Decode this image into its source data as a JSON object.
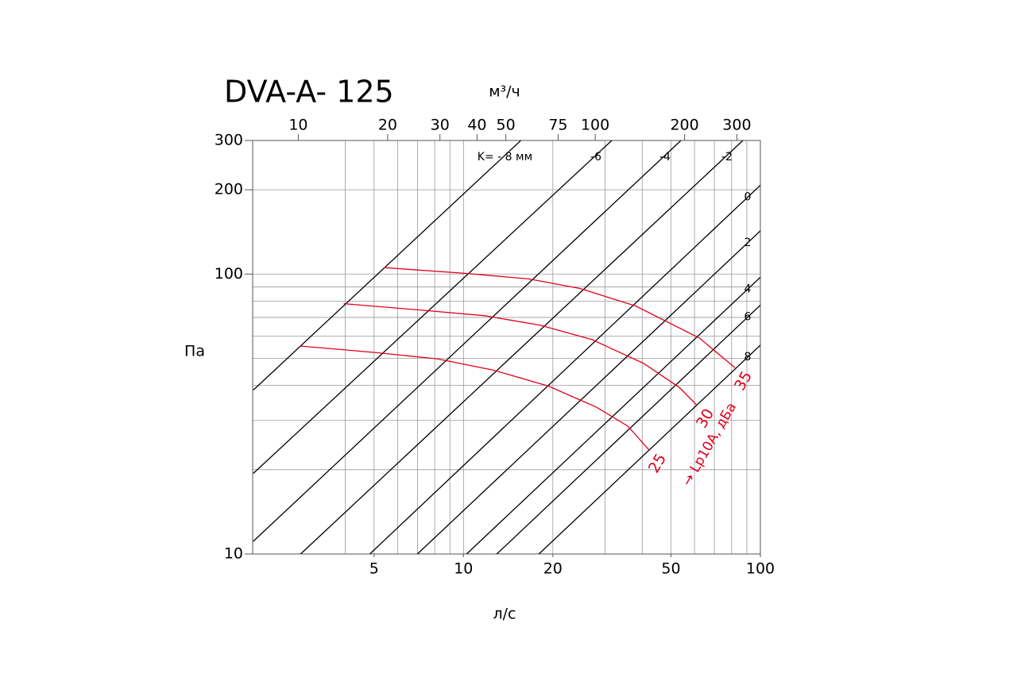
{
  "chart_data": {
    "type": "line",
    "title": "DVA-A- 125",
    "x_label": "л/с",
    "y_label": "Па",
    "x2_label": "м³/ч",
    "log_x": true,
    "log_y": true,
    "xlim": [
      1.95,
      100
    ],
    "ylim": [
      10,
      300
    ],
    "xticks": [
      5,
      10,
      20,
      50,
      100
    ],
    "yticks": [
      10,
      100,
      200,
      300
    ],
    "x2lim": [
      7.02,
      360
    ],
    "x2ticks": [
      10,
      20,
      30,
      40,
      50,
      75,
      100,
      200,
      300
    ],
    "xgrid": [
      4,
      5,
      6,
      7,
      8,
      9,
      10,
      20,
      30,
      40,
      50,
      60,
      70,
      80,
      90
    ],
    "ygrid": [
      20,
      30,
      40,
      50,
      60,
      70,
      80,
      90,
      100,
      200
    ],
    "grid": true,
    "series": [
      {
        "name": "K= - 8 мм",
        "color": "#000000",
        "x": [
          1.96,
          15.6
        ],
        "values": [
          38.5,
          300
        ]
      },
      {
        "name": "-6",
        "color": "#000000",
        "x": [
          1.96,
          31.6
        ],
        "values": [
          19.4,
          300
        ]
      },
      {
        "name": "-4",
        "color": "#000000",
        "x": [
          1.96,
          54.0
        ],
        "values": [
          11.1,
          300
        ]
      },
      {
        "name": "-2",
        "color": "#000000",
        "x": [
          2.83,
          87.3
        ],
        "values": [
          10,
          300
        ]
      },
      {
        "name": "0",
        "color": "#000000",
        "x": [
          4.84,
          100
        ],
        "values": [
          10,
          207.6
        ]
      },
      {
        "name": "2",
        "color": "#000000",
        "x": [
          7.0,
          100
        ],
        "values": [
          10,
          142.6
        ]
      },
      {
        "name": "4",
        "color": "#000000",
        "x": [
          10.25,
          100
        ],
        "values": [
          10,
          97.4
        ]
      },
      {
        "name": "6",
        "color": "#000000",
        "x": [
          12.95,
          100
        ],
        "values": [
          10,
          77.4
        ]
      },
      {
        "name": "8",
        "color": "#000000",
        "x": [
          17.95,
          100
        ],
        "values": [
          10,
          55.7
        ]
      },
      {
        "name": "35",
        "color": "#e0001b",
        "x": [
          5.4,
          10.12,
          16.57,
          24.7,
          38.0,
          62.3,
          82.1
        ],
        "values": [
          105.4,
          100.6,
          96.1,
          88.8,
          76.9,
          59.1,
          46.3
        ]
      },
      {
        "name": "30",
        "color": "#e0001b",
        "x": [
          3.95,
          7.67,
          11.8,
          18.2,
          27.1,
          40.5,
          53.4,
          61.1
        ],
        "values": [
          78.4,
          73.9,
          71.0,
          65.6,
          58.3,
          47.9,
          39.3,
          34.0
        ]
      },
      {
        "name": "25",
        "color": "#e0001b",
        "x": [
          2.83,
          4.99,
          8.16,
          12.56,
          19.3,
          27.96,
          35.8,
          42.2
        ],
        "values": [
          55.3,
          52.5,
          49.8,
          45.4,
          39.8,
          33.5,
          28.6,
          23.5
        ]
      }
    ],
    "annotation": "→ Lp10A, дБа"
  }
}
